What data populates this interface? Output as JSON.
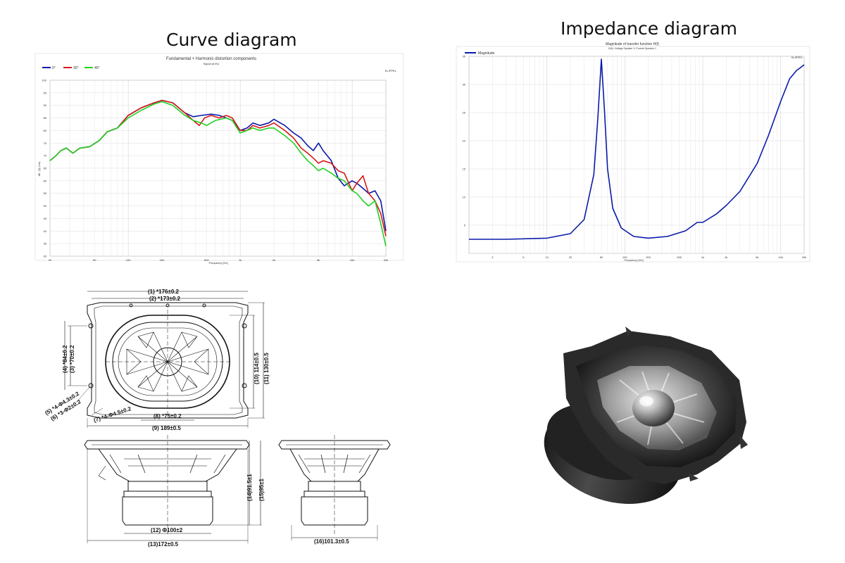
{
  "titles": {
    "curve": "Curve diagram",
    "impedance": "Impedance diagram"
  },
  "colors": {
    "on_axis": "#0a1aa8",
    "deg30": "#d81818",
    "deg45": "#22d022",
    "impedance": "#0a1aa8"
  },
  "chart_data": [
    {
      "type": "line",
      "title": "Fundamental + Harmonic distortion components",
      "subtitle": "Signal at IN1",
      "brand": "KLIPPEL",
      "xlabel": "Frequency [Hz]",
      "ylabel": "dB - [V] (rms)",
      "x_scale": "log",
      "xlim": [
        20,
        20000
      ],
      "ylim": [
        30,
        100
      ],
      "x_ticks": [
        "20",
        "50",
        "100",
        "200",
        "500",
        "1k",
        "2k",
        "5k",
        "10k",
        "20k"
      ],
      "y_ticks": [
        "100",
        "95",
        "90",
        "85",
        "80",
        "75",
        "70",
        "65",
        "60",
        "55",
        "50",
        "45",
        "40",
        "35",
        "30"
      ],
      "grid": true,
      "legend_position": "top-left",
      "series": [
        {
          "name": "0°",
          "points": [
            [
              20,
              68
            ],
            [
              22,
              69.5
            ],
            [
              25,
              72
            ],
            [
              28,
              73
            ],
            [
              32,
              71
            ],
            [
              37,
              73
            ],
            [
              45,
              73.5
            ],
            [
              55,
              76
            ],
            [
              65,
              79.5
            ],
            [
              80,
              81
            ],
            [
              100,
              86
            ],
            [
              130,
              89
            ],
            [
              170,
              91
            ],
            [
              200,
              92
            ],
            [
              250,
              91
            ],
            [
              320,
              87
            ],
            [
              380,
              85.5
            ],
            [
              450,
              86
            ],
            [
              550,
              86.5
            ],
            [
              650,
              86
            ],
            [
              750,
              85
            ],
            [
              850,
              84
            ],
            [
              1000,
              80
            ],
            [
              1150,
              81
            ],
            [
              1300,
              83
            ],
            [
              1500,
              82
            ],
            [
              1800,
              83
            ],
            [
              2000,
              84.5
            ],
            [
              2500,
              82
            ],
            [
              3000,
              79
            ],
            [
              3500,
              77
            ],
            [
              4000,
              74
            ],
            [
              4500,
              72
            ],
            [
              5000,
              75
            ],
            [
              5500,
              72
            ],
            [
              6500,
              68
            ],
            [
              7500,
              61
            ],
            [
              8500,
              58
            ],
            [
              10000,
              60
            ],
            [
              11000,
              59
            ],
            [
              12500,
              57
            ],
            [
              14000,
              55
            ],
            [
              16000,
              56
            ],
            [
              18000,
              52
            ],
            [
              20000,
              40
            ]
          ]
        },
        {
          "name": "30°",
          "points": [
            [
              20,
              68
            ],
            [
              22,
              69.5
            ],
            [
              25,
              72
            ],
            [
              28,
              73
            ],
            [
              32,
              71
            ],
            [
              37,
              73
            ],
            [
              45,
              73.5
            ],
            [
              55,
              76
            ],
            [
              65,
              79.5
            ],
            [
              80,
              81
            ],
            [
              100,
              86
            ],
            [
              130,
              89
            ],
            [
              170,
              91
            ],
            [
              200,
              92
            ],
            [
              250,
              91
            ],
            [
              320,
              87
            ],
            [
              380,
              84
            ],
            [
              430,
              82
            ],
            [
              480,
              85
            ],
            [
              550,
              86
            ],
            [
              650,
              85
            ],
            [
              750,
              86
            ],
            [
              850,
              85
            ],
            [
              1000,
              80
            ],
            [
              1150,
              80
            ],
            [
              1300,
              82
            ],
            [
              1500,
              81
            ],
            [
              1800,
              82
            ],
            [
              2000,
              83
            ],
            [
              2500,
              80
            ],
            [
              3000,
              77
            ],
            [
              3500,
              73
            ],
            [
              4000,
              71
            ],
            [
              4500,
              69
            ],
            [
              5000,
              67
            ],
            [
              5500,
              68
            ],
            [
              6500,
              67
            ],
            [
              7500,
              64
            ],
            [
              8500,
              63
            ],
            [
              10000,
              56
            ],
            [
              11000,
              59
            ],
            [
              12500,
              62
            ],
            [
              14000,
              55
            ],
            [
              16000,
              52
            ],
            [
              18000,
              47
            ],
            [
              20000,
              38
            ]
          ]
        },
        {
          "name": "45°",
          "points": [
            [
              20,
              68
            ],
            [
              22,
              69.5
            ],
            [
              25,
              72
            ],
            [
              28,
              73
            ],
            [
              32,
              71
            ],
            [
              37,
              73
            ],
            [
              45,
              73.5
            ],
            [
              55,
              76
            ],
            [
              65,
              79.5
            ],
            [
              80,
              81
            ],
            [
              100,
              85
            ],
            [
              130,
              88
            ],
            [
              170,
              90.5
            ],
            [
              200,
              91.5
            ],
            [
              250,
              90
            ],
            [
              320,
              86
            ],
            [
              380,
              84
            ],
            [
              450,
              83
            ],
            [
              500,
              82
            ],
            [
              600,
              84
            ],
            [
              750,
              85
            ],
            [
              850,
              84
            ],
            [
              1000,
              79
            ],
            [
              1150,
              80
            ],
            [
              1300,
              81
            ],
            [
              1500,
              80
            ],
            [
              1800,
              81
            ],
            [
              2000,
              81
            ],
            [
              2500,
              78
            ],
            [
              3000,
              75
            ],
            [
              3500,
              71
            ],
            [
              4000,
              68
            ],
            [
              4500,
              66
            ],
            [
              5000,
              64
            ],
            [
              5500,
              65
            ],
            [
              6500,
              63
            ],
            [
              7500,
              61
            ],
            [
              8500,
              60
            ],
            [
              10000,
              56
            ],
            [
              11000,
              55
            ],
            [
              12500,
              52
            ],
            [
              14000,
              50
            ],
            [
              16000,
              52
            ],
            [
              18000,
              43
            ],
            [
              20000,
              34
            ]
          ]
        }
      ]
    },
    {
      "type": "line",
      "title": "Magnitude of transfer function H(f)",
      "subtitle": "H(f)= Voltage Speaker 1/ Current Speaker 1",
      "brand": "KLIPPEL",
      "xlabel": "Frequency [Hz]",
      "x_scale": "log",
      "xlim": [
        1,
        20000
      ],
      "ylim": [
        0,
        35
      ],
      "x_ticks": [
        "2",
        "5",
        "10",
        "20",
        "50",
        "100",
        "200",
        "500",
        "1k",
        "2k",
        "5k",
        "10k",
        "20k"
      ],
      "y_ticks": [
        "35",
        "30",
        "25",
        "20",
        "15",
        "10",
        "5"
      ],
      "grid": true,
      "legend_position": "top-left",
      "series": [
        {
          "name": "Magnitude",
          "points": [
            [
              1,
              2.5
            ],
            [
              3,
              2.5
            ],
            [
              10,
              2.7
            ],
            [
              20,
              3.5
            ],
            [
              30,
              6
            ],
            [
              40,
              14
            ],
            [
              45,
              24
            ],
            [
              50,
              34.5
            ],
            [
              55,
              25
            ],
            [
              60,
              15
            ],
            [
              70,
              8
            ],
            [
              90,
              4.5
            ],
            [
              130,
              3
            ],
            [
              200,
              2.7
            ],
            [
              350,
              3
            ],
            [
              600,
              4
            ],
            [
              850,
              5.5
            ],
            [
              1000,
              5.5
            ],
            [
              1500,
              7
            ],
            [
              2000,
              8.5
            ],
            [
              3000,
              11
            ],
            [
              5000,
              16
            ],
            [
              7000,
              21
            ],
            [
              10000,
              27
            ],
            [
              13000,
              31
            ],
            [
              16000,
              32.5
            ],
            [
              18000,
              33
            ],
            [
              20000,
              33.5
            ]
          ]
        }
      ]
    }
  ],
  "drawing": {
    "labels": [
      "(1) *176±0.2",
      "(2) *173±0.2",
      "(4) *84±0.2",
      "(3) *70±0.2",
      "(10) 114±0.5",
      "(11) 130±0.5",
      "(5) *4-Φ4.3±0.2",
      "(6) *3-Φ2±0.2",
      "(7) *4-Φ4.5±0.2",
      "(8) *75±0.2",
      "(9) 189±0.5",
      "(14)91.5±1",
      "(15)95±1",
      "(12) Φ100±2",
      "(13)172±0.5",
      "(16)101.3±0.5"
    ]
  }
}
